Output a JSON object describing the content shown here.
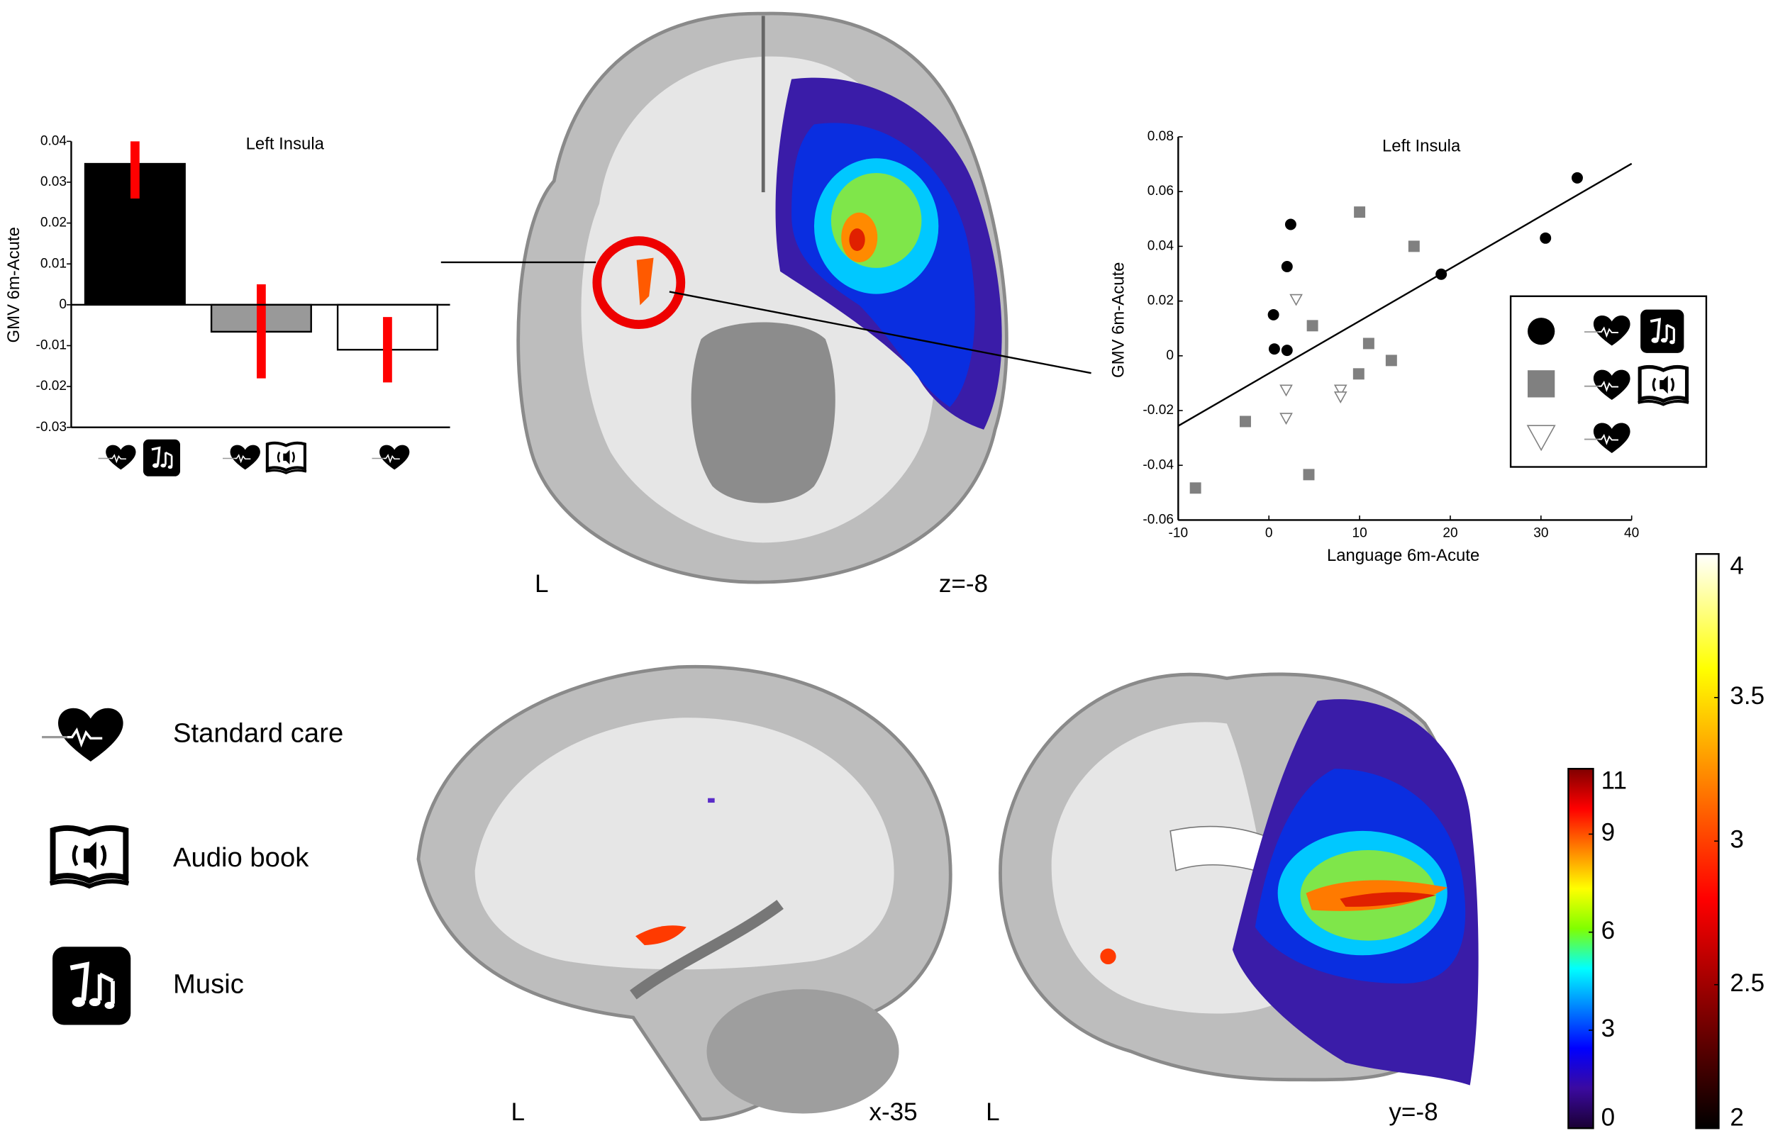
{
  "chart_data": [
    {
      "type": "bar",
      "title": "Left Insula",
      "y_label": "GMV 6m-Acute",
      "categories": [
        null,
        null,
        null
      ],
      "values": [
        0.0345,
        -0.0066,
        -0.011
      ],
      "error_low": [
        0.026,
        -0.018,
        -0.019
      ],
      "error_high": [
        0.04,
        0.005,
        -0.003
      ],
      "colors": [
        "#000000",
        "#999999",
        "#ffffff"
      ],
      "error_color": "#ff0000",
      "ylim": [
        -0.03,
        0.04
      ],
      "yticks": [
        -0.03,
        -0.02,
        -0.01,
        0,
        0.01,
        0.02,
        0.03,
        0.04
      ]
    },
    {
      "type": "scatter",
      "title": "Left Insula",
      "x_label": "Language 6m-Acute",
      "y_label": "GMV 6m-Acute",
      "series": [
        {
          "marker": "circle",
          "color": "#000000",
          "x": [
            0.5,
            2.4,
            2,
            0.6,
            2,
            19,
            30.5,
            34
          ],
          "y": [
            0.015,
            0.048,
            0.0326,
            0.0025,
            0.002,
            0.0298,
            0.043,
            0.065
          ]
        },
        {
          "marker": "square",
          "color": "#808080",
          "x": [
            -8.1,
            -2.6,
            4.8,
            4.4,
            10,
            9.9,
            11,
            13.5,
            16
          ],
          "y": [
            -0.0483,
            -0.024,
            0.011,
            -0.0434,
            0.0525,
            -0.0066,
            0.0045,
            -0.0017,
            0.04
          ]
        },
        {
          "marker": "triangle",
          "color": "#808080",
          "x": [
            3,
            1.9,
            1.9,
            7.9,
            7.9
          ],
          "y": [
            0.0207,
            -0.0124,
            -0.0227,
            -0.0124,
            -0.0149
          ]
        }
      ],
      "fit": {
        "x": [
          -10,
          40
        ],
        "y": [
          -0.0256,
          0.0702
        ]
      },
      "xlim": [
        -10,
        40
      ],
      "ylim": [
        -0.06,
        0.08
      ],
      "xticks": [
        -10,
        0,
        10,
        20,
        30,
        40
      ],
      "yticks": [
        -0.06,
        -0.04,
        -0.02,
        0,
        0.02,
        0.04,
        0.06,
        0.08
      ]
    },
    {
      "type": "colorbar",
      "lim": [
        0,
        11
      ],
      "ticks": [
        0,
        3,
        6,
        9,
        11
      ],
      "colors": [
        "#1a0033",
        "#3b0aa0",
        "#0000ff",
        "#0080ff",
        "#00ffff",
        "#80ff00",
        "#ffff00",
        "#ff8000",
        "#ff0000",
        "#800000"
      ]
    },
    {
      "type": "colorbar",
      "lim": [
        2,
        4
      ],
      "ticks": [
        2,
        2.5,
        3,
        3.5,
        4
      ],
      "colors": [
        "#000000",
        "#800000",
        "#ff0000",
        "#ff8000",
        "#ffff00",
        "#ffffff"
      ]
    }
  ],
  "legend": {
    "items": [
      "Standard care",
      "Audio book",
      "Music"
    ]
  },
  "slices": {
    "axial": {
      "side": "L",
      "coordinate": "z=-8"
    },
    "sagittal": {
      "side": "L",
      "coordinate": "x-35"
    },
    "coronal": {
      "side": "L",
      "coordinate": "y=-8"
    }
  }
}
